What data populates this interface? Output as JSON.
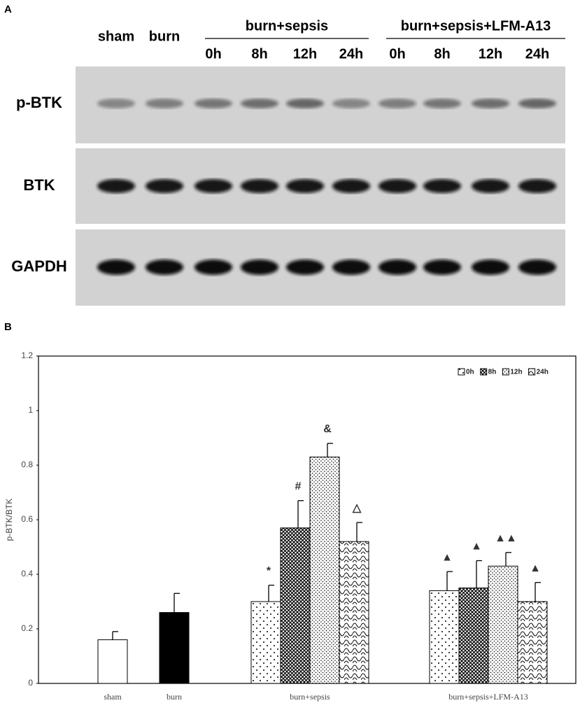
{
  "figure": {
    "panel_a": {
      "label": "A",
      "lane_labels": [
        "sham",
        "burn"
      ],
      "groups": [
        {
          "label": "burn+sepsis",
          "times": [
            "0h",
            "8h",
            "12h",
            "24h"
          ]
        },
        {
          "label": "burn+sepsis+LFM-A13",
          "times": [
            "0h",
            "8h",
            "12h",
            "24h"
          ]
        }
      ],
      "rows": [
        "p-BTK",
        "BTK",
        "GAPDH"
      ]
    },
    "panel_b": {
      "label": "B"
    }
  },
  "chart_data": {
    "type": "bar",
    "ylabel": "p-BTK/BTK",
    "categories": [
      "sham",
      "burn",
      "burn+sepsis",
      "burn+sepsis+LFM-A13"
    ],
    "ylim": [
      0,
      1.2
    ],
    "yticks": [
      0,
      0.2,
      0.4,
      0.6,
      0.8,
      1,
      1.2
    ],
    "series": [
      {
        "color": "#ffffff",
        "pattern": "solid",
        "values": [
          0.16,
          null,
          null,
          null
        ],
        "errors": [
          0.03,
          null,
          null,
          null
        ]
      },
      {
        "color": "#000000",
        "pattern": "solid",
        "values": [
          null,
          0.26,
          null,
          null
        ],
        "errors": [
          null,
          0.07,
          null,
          null
        ]
      },
      {
        "name": "0h",
        "color": "#ffffff",
        "pattern": "sparse-dots",
        "values": [
          null,
          null,
          0.3,
          0.34
        ],
        "errors": [
          null,
          null,
          0.06,
          0.07
        ],
        "markers": [
          null,
          null,
          "*",
          "▲"
        ]
      },
      {
        "name": "8h",
        "color": "#ffffff",
        "pattern": "crosshatch",
        "values": [
          null,
          null,
          0.57,
          0.35
        ],
        "errors": [
          null,
          null,
          0.1,
          0.1
        ],
        "markers": [
          null,
          null,
          "#",
          "▲"
        ]
      },
      {
        "name": "12h",
        "color": "#ffffff",
        "pattern": "dense-dots",
        "values": [
          null,
          null,
          0.83,
          0.43
        ],
        "errors": [
          null,
          null,
          0.05,
          0.05
        ],
        "markers": [
          null,
          null,
          "&",
          "▲▲"
        ]
      },
      {
        "name": "24h",
        "color": "#ffffff",
        "pattern": "waves",
        "values": [
          null,
          null,
          0.52,
          0.3
        ],
        "errors": [
          null,
          null,
          0.07,
          0.07
        ],
        "markers": [
          null,
          null,
          "△",
          "▲"
        ]
      }
    ]
  }
}
